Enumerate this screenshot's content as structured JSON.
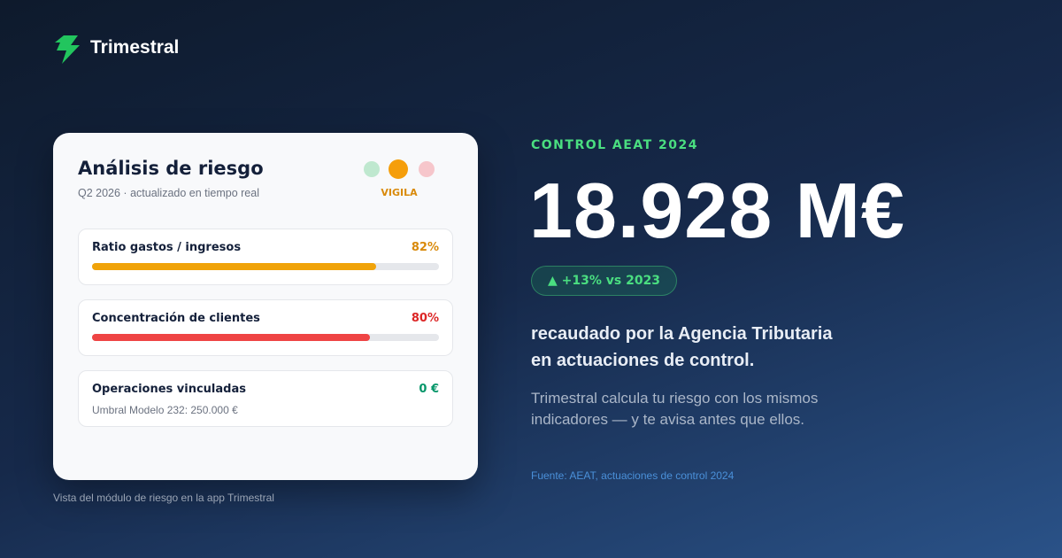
{
  "brand": "Trimestral",
  "card": {
    "title": "Análisis de riesgo",
    "subtitle": "Q2 2026 · actualizado en tiempo real",
    "status": "VIGILA",
    "rows": [
      {
        "label": "Ratio gastos / ingresos",
        "value": 82,
        "value_label": "82%",
        "color": "#f0a30a",
        "label_color": "#d98a0b"
      },
      {
        "label": "Concentración de clientes",
        "value": 80,
        "value_label": "80%",
        "color": "#ef4444",
        "label_color": "#dc2626"
      },
      {
        "label": "Operaciones vinculadas",
        "value_label": "0 €",
        "note": "Umbral Modelo 232: 250.000 €",
        "label_color": "#059669"
      }
    ]
  },
  "caption": "Vista del módulo de riesgo en la app Trimestral",
  "eyebrow": "CONTROL AEAT 2024",
  "headline": "18.928 M€",
  "badge": "+13% vs 2023",
  "description": [
    "recaudado por la Agencia Tributaria",
    "en actuaciones de control."
  ],
  "paragraph": [
    "Trimestral calcula tu riesgo con los mismos",
    "indicadores — y te avisa antes que ellos."
  ],
  "source": "Fuente: AEAT, actuaciones de control 2024"
}
